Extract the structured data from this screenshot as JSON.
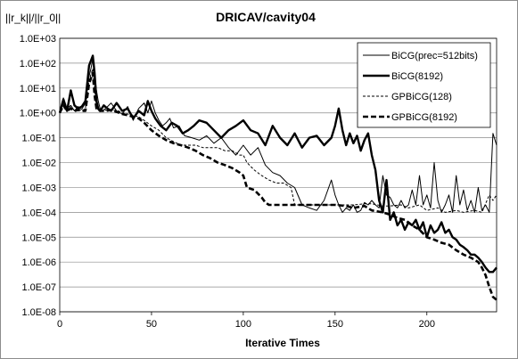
{
  "chart_data": {
    "type": "line",
    "title": "DRICAV/cavity04",
    "xlabel": "Iterative Times",
    "ylabel": "||r_k||/||r_0||",
    "x_range": [
      0,
      238
    ],
    "x_ticks": [
      "0",
      "50",
      "100",
      "150",
      "200"
    ],
    "y_scale": "log",
    "y_range": [
      1e-08,
      1000
    ],
    "y_ticks": [
      "1.0E+03",
      "1.0E+02",
      "1.0E+01",
      "1.0E+00",
      "1.0E-01",
      "1.0E-02",
      "1.0E-03",
      "1.0E-04",
      "1.0E-05",
      "1.0E-06",
      "1.0E-07",
      "1.0E-08"
    ],
    "grid": "horizontal",
    "legend_position": "top-right",
    "series": [
      {
        "name": "BiCG(prec=512bits)",
        "style": "thin-solid",
        "x": [
          0,
          2,
          4,
          6,
          8,
          10,
          12,
          14,
          16,
          17,
          18,
          19,
          20,
          21,
          22,
          23,
          25,
          28,
          31,
          34,
          37,
          40,
          43,
          46,
          48,
          50,
          52,
          54,
          56,
          58,
          60,
          62,
          65,
          68,
          72,
          76,
          80,
          84,
          88,
          92,
          96,
          100,
          104,
          108,
          112,
          116,
          120,
          124,
          128,
          132,
          136,
          140,
          144,
          148,
          150,
          152,
          154,
          156,
          158,
          160,
          162,
          164,
          166,
          168,
          170,
          172,
          174,
          176,
          178,
          180,
          182,
          184,
          186,
          188,
          190,
          192,
          194,
          196,
          198,
          200,
          202,
          204,
          206,
          208,
          210,
          212,
          214,
          216,
          218,
          220,
          222,
          224,
          226,
          228,
          230,
          232,
          234,
          236,
          238
        ],
        "y": [
          1.0,
          4.0,
          1.5,
          2.0,
          1.2,
          1.8,
          1.4,
          2.5,
          30,
          60,
          150,
          40,
          8,
          3,
          1.5,
          1.2,
          1.5,
          2.5,
          1.2,
          0.9,
          1.8,
          0.5,
          1.5,
          2.5,
          1.0,
          3.0,
          1.0,
          0.5,
          0.3,
          0.4,
          0.6,
          0.25,
          0.3,
          0.12,
          0.1,
          0.08,
          0.12,
          0.06,
          0.1,
          0.04,
          0.02,
          0.05,
          0.02,
          0.04,
          0.008,
          0.004,
          0.003,
          0.0015,
          0.001,
          0.0002,
          0.00015,
          0.00012,
          0.0003,
          0.002,
          0.0005,
          0.0002,
          0.0001,
          0.00015,
          0.00012,
          0.0002,
          0.0001,
          0.00012,
          0.00025,
          0.0002,
          0.0003,
          0.0002,
          0.00015,
          0.003,
          0.0005,
          0.0004,
          0.0002,
          0.00015,
          0.0003,
          0.00015,
          0.0002,
          0.0008,
          0.0002,
          0.003,
          0.0002,
          0.0005,
          0.00015,
          0.01,
          0.0003,
          0.0001,
          0.0002,
          0.0005,
          0.0001,
          0.003,
          0.0002,
          0.0008,
          0.00012,
          0.0003,
          0.0001,
          0.001,
          0.00012,
          0.0002,
          0.0001,
          0.15,
          0.05
        ]
      },
      {
        "name": "BiCG(8192)",
        "style": "thick-solid",
        "x": [
          0,
          2,
          4,
          6,
          8,
          10,
          12,
          14,
          16,
          18,
          19,
          20,
          21,
          22,
          24,
          26,
          28,
          31,
          34,
          37,
          40,
          43,
          46,
          48,
          50,
          52,
          55,
          58,
          61,
          64,
          67,
          70,
          73,
          76,
          80,
          84,
          88,
          92,
          96,
          100,
          104,
          108,
          112,
          116,
          120,
          124,
          128,
          132,
          136,
          140,
          144,
          148,
          150,
          152,
          154,
          156,
          158,
          160,
          162,
          164,
          166,
          168,
          170,
          172,
          174,
          176,
          178,
          180,
          182,
          184,
          186,
          188,
          190,
          192,
          194,
          196,
          198,
          200,
          202,
          204,
          206,
          208,
          210,
          212,
          214,
          216,
          218,
          220,
          222,
          224,
          226,
          228,
          230,
          232,
          234,
          236,
          238
        ],
        "y": [
          1.0,
          3.5,
          1.2,
          8,
          2,
          1.5,
          1.8,
          3,
          80,
          200,
          40,
          3,
          1.5,
          1.2,
          2,
          1.5,
          1.2,
          2.5,
          1.2,
          1.5,
          0.6,
          1.2,
          0.8,
          3,
          1.2,
          0.6,
          0.3,
          0.2,
          0.4,
          0.3,
          0.15,
          0.2,
          0.3,
          0.5,
          0.4,
          0.2,
          0.1,
          0.2,
          0.3,
          0.5,
          0.2,
          0.15,
          0.05,
          0.3,
          0.1,
          0.05,
          0.15,
          0.04,
          0.1,
          0.12,
          0.05,
          0.1,
          0.3,
          1.5,
          0.2,
          0.05,
          0.15,
          0.06,
          0.12,
          0.03,
          0.08,
          0.15,
          0.02,
          0.005,
          0.0003,
          0.0001,
          0.002,
          5e-05,
          0.0001,
          3e-05,
          5e-05,
          2e-05,
          4e-05,
          3e-05,
          5e-05,
          2e-05,
          4e-05,
          1e-05,
          3e-05,
          1.5e-05,
          2e-05,
          4e-05,
          1.5e-05,
          2e-05,
          1e-05,
          8e-06,
          5e-06,
          4e-06,
          3e-06,
          2e-06,
          2e-06,
          1.5e-06,
          1e-06,
          6e-07,
          4e-07,
          4e-07,
          6e-07
        ]
      },
      {
        "name": "GPBiCG(128)",
        "style": "thin-dashed",
        "x": [
          0,
          2,
          4,
          6,
          8,
          10,
          12,
          14,
          16,
          18,
          19,
          20,
          22,
          25,
          28,
          31,
          34,
          37,
          40,
          43,
          46,
          50,
          54,
          58,
          62,
          66,
          70,
          74,
          78,
          82,
          86,
          90,
          94,
          98,
          100,
          102,
          106,
          110,
          114,
          118,
          122,
          126,
          128,
          130,
          134,
          140,
          146,
          150,
          156,
          160,
          166,
          170,
          176,
          180,
          186,
          190,
          196,
          200,
          206,
          210,
          216,
          220,
          226,
          230,
          234,
          236,
          238
        ],
        "y": [
          1.0,
          2.5,
          1.2,
          1.8,
          1.2,
          1.5,
          1.2,
          1.5,
          20,
          60,
          8,
          1.5,
          1.2,
          1.3,
          1.2,
          1.3,
          1.0,
          0.9,
          0.8,
          0.7,
          0.5,
          0.3,
          0.2,
          0.1,
          0.07,
          0.05,
          0.05,
          0.05,
          0.04,
          0.04,
          0.04,
          0.03,
          0.03,
          0.02,
          0.02,
          0.01,
          0.005,
          0.003,
          0.002,
          0.0015,
          0.0015,
          0.001,
          0.0002,
          0.0002,
          0.0002,
          0.0002,
          0.0002,
          0.0002,
          0.0002,
          0.0002,
          0.00022,
          0.00022,
          0.00018,
          0.00018,
          0.0002,
          0.00015,
          0.0002,
          0.00012,
          0.00015,
          0.0001,
          0.00012,
          0.0001,
          0.00012,
          0.0001,
          0.0005,
          0.0003,
          0.0005
        ]
      },
      {
        "name": "GPBiCG(8192)",
        "style": "thick-dashed",
        "x": [
          0,
          2,
          4,
          6,
          8,
          10,
          12,
          14,
          16,
          18,
          19,
          20,
          22,
          25,
          28,
          31,
          34,
          37,
          40,
          43,
          46,
          50,
          54,
          58,
          62,
          66,
          70,
          74,
          78,
          82,
          86,
          90,
          94,
          98,
          100,
          102,
          106,
          110,
          112,
          114,
          118,
          122,
          128,
          134,
          140,
          146,
          150,
          156,
          160,
          166,
          170,
          176,
          180,
          184,
          188,
          192,
          196,
          200,
          204,
          208,
          212,
          216,
          220,
          224,
          228,
          230,
          232,
          234,
          236,
          238
        ],
        "y": [
          1.0,
          2.0,
          1.2,
          1.5,
          1.2,
          1.3,
          1.2,
          1.2,
          15,
          40,
          5,
          1.5,
          1.2,
          1.2,
          1.3,
          1.1,
          0.9,
          0.8,
          0.7,
          0.6,
          0.4,
          0.2,
          0.12,
          0.08,
          0.06,
          0.05,
          0.04,
          0.03,
          0.02,
          0.015,
          0.01,
          0.008,
          0.006,
          0.004,
          0.003,
          0.001,
          0.0008,
          0.0004,
          0.00025,
          0.0002,
          0.0002,
          0.0002,
          0.0002,
          0.0002,
          0.0002,
          0.0002,
          0.0002,
          0.00018,
          0.00015,
          0.00018,
          0.00012,
          0.0001,
          8e-05,
          6e-05,
          5e-05,
          3e-05,
          2e-05,
          1e-05,
          8e-06,
          6e-06,
          5e-06,
          3e-06,
          2e-06,
          1.5e-06,
          1e-06,
          6e-07,
          3e-07,
          1e-07,
          4e-08,
          3e-08
        ]
      }
    ]
  }
}
